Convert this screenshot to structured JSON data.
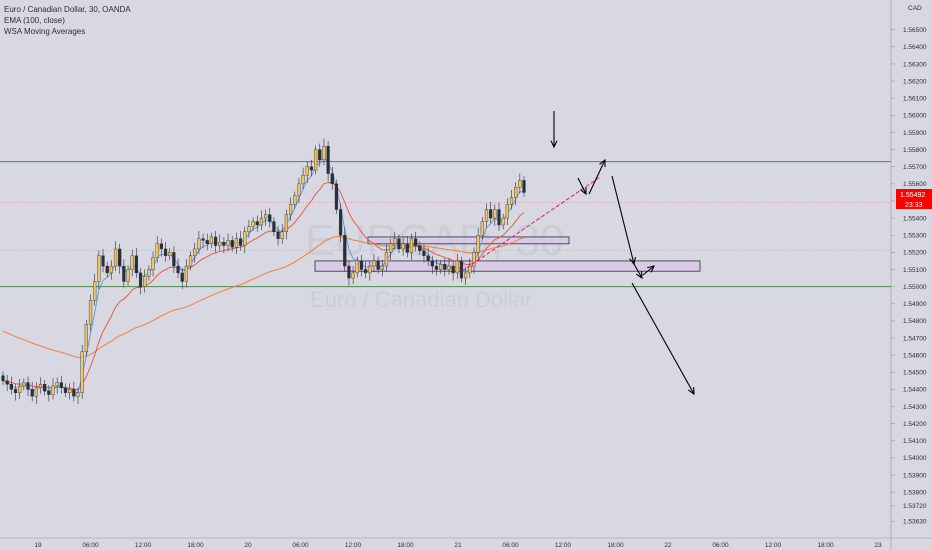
{
  "legend": {
    "symbol_line": "Euro / Canadian Dollar, 30, OANDA",
    "ema_line": "EMA (100, close)",
    "wsa_line": "WSA Moving Averages"
  },
  "currency": "CAD",
  "watermark": {
    "symbol": "EURCAD, 30",
    "name": "Euro / Canadian Dollar"
  },
  "price_tag": {
    "price": "1.55492",
    "countdown": "23:33",
    "color": "#ff0000"
  },
  "colors": {
    "background": "#d7d8e1",
    "up_candle": "#f3c65c",
    "down_candle": "#2a2e39",
    "ema": "#f77c3c",
    "fast_ma": "#5b9bd5",
    "level_line": "#4a8c44",
    "trendline": "#e91e63",
    "zone_fill": "#d9c6e8"
  },
  "chart_data": {
    "type": "candlestick",
    "title": "Euro / Canadian Dollar, 30, OANDA",
    "ylim": [
      1.5355,
      1.5665
    ],
    "y_ticks": [
      "1.56500",
      "1.56400",
      "1.56300",
      "1.56200",
      "1.56100",
      "1.56000",
      "1.55900",
      "1.55800",
      "1.55700",
      "1.55600",
      "1.55500",
      "1.55400",
      "1.55300",
      "1.55200",
      "1.55100",
      "1.55000",
      "1.54900",
      "1.54800",
      "1.54700",
      "1.54600",
      "1.54500",
      "1.54400",
      "1.54300",
      "1.54200",
      "1.54100",
      "1.54000",
      "1.53900",
      "1.53800",
      "1.53720",
      "1.53630"
    ],
    "x_ticks": [
      "19",
      "06:00",
      "12:00",
      "18:00",
      "20",
      "06:00",
      "12:00",
      "18:00",
      "21",
      "06:00",
      "12:00",
      "18:00",
      "22",
      "06:00",
      "12:00",
      "18:00",
      "23"
    ],
    "horizontal_levels": [
      1.5573,
      1.55
    ],
    "zones": [
      {
        "from": 1.5525,
        "to": 1.5529
      },
      {
        "from": 1.5509,
        "to": 1.5515
      }
    ],
    "candles_close": [
      1.5445,
      1.5443,
      1.544,
      1.5438,
      1.5442,
      1.5444,
      1.544,
      1.5436,
      1.5441,
      1.5443,
      1.5439,
      1.5437,
      1.5442,
      1.5444,
      1.5441,
      1.5438,
      1.544,
      1.5436,
      1.5438,
      1.5462,
      1.5478,
      1.5492,
      1.5503,
      1.5518,
      1.5512,
      1.5508,
      1.5512,
      1.5522,
      1.5512,
      1.5503,
      1.551,
      1.5518,
      1.5508,
      1.55,
      1.5506,
      1.551,
      1.5517,
      1.5525,
      1.5522,
      1.5518,
      1.552,
      1.5512,
      1.5508,
      1.5503,
      1.5512,
      1.5518,
      1.5522,
      1.5528,
      1.5527,
      1.5525,
      1.5529,
      1.5524,
      1.5526,
      1.5524,
      1.5527,
      1.5523,
      1.5528,
      1.5524,
      1.5532,
      1.5535,
      1.5538,
      1.5536,
      1.554,
      1.5542,
      1.5538,
      1.5532,
      1.5528,
      1.5532,
      1.5542,
      1.5548,
      1.5553,
      1.556,
      1.5565,
      1.557,
      1.5568,
      1.558,
      1.5574,
      1.5582,
      1.5566,
      1.556,
      1.5545,
      1.553,
      1.5512,
      1.5505,
      1.5508,
      1.5515,
      1.551,
      1.5508,
      1.5512,
      1.5515,
      1.551,
      1.5512,
      1.552,
      1.5525,
      1.5528,
      1.5522,
      1.5525,
      1.552,
      1.5528,
      1.5524,
      1.5521,
      1.5518,
      1.5515,
      1.5512,
      1.551,
      1.5513,
      1.551,
      1.5512,
      1.5508,
      1.5515,
      1.5505,
      1.5508,
      1.5512,
      1.552,
      1.553,
      1.5538,
      1.5545,
      1.554,
      1.5545,
      1.5536,
      1.554,
      1.5548,
      1.5552,
      1.5558,
      1.5562,
      1.5555
    ]
  }
}
